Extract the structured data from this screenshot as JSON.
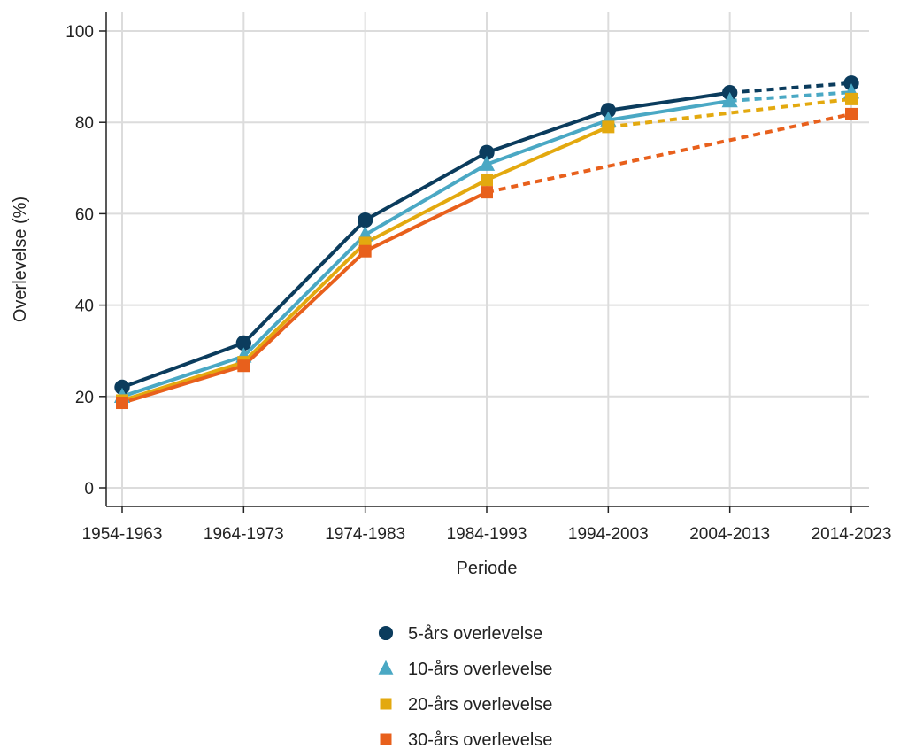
{
  "chart_data": {
    "type": "line",
    "xlabel": "Periode",
    "ylabel": "Overlevelse (%)",
    "categories": [
      "1954-1963",
      "1964-1973",
      "1974-1983",
      "1984-1993",
      "1994-2003",
      "2004-2013",
      "2014-2023"
    ],
    "ylim": [
      0,
      100
    ],
    "yticks": [
      0,
      20,
      40,
      60,
      80,
      100
    ],
    "grid": true,
    "legend_position": "bottom",
    "series": [
      {
        "name": "5-års overlevelse",
        "marker": "circle",
        "color": "#0b3c5d",
        "values": [
          22.0,
          31.7,
          58.6,
          73.4,
          82.6,
          86.5,
          88.6
        ],
        "dashed_from_index": 5
      },
      {
        "name": "10-års overlevelse",
        "marker": "triangle",
        "color": "#4aa8c4",
        "values": [
          20.0,
          28.8,
          55.4,
          70.8,
          80.5,
          84.7,
          86.6
        ],
        "dashed_from_index": 5
      },
      {
        "name": "20-års overlevelse",
        "marker": "square",
        "color": "#e3a90f",
        "values": [
          19.1,
          27.5,
          53.6,
          67.4,
          79.0,
          null,
          85.1
        ],
        "dashed_from_index": 4
      },
      {
        "name": "30-års overlevelse",
        "marker": "square",
        "color": "#e8601c",
        "values": [
          18.6,
          26.7,
          51.8,
          64.7,
          null,
          null,
          81.8
        ],
        "dashed_from_index": 3
      }
    ]
  }
}
